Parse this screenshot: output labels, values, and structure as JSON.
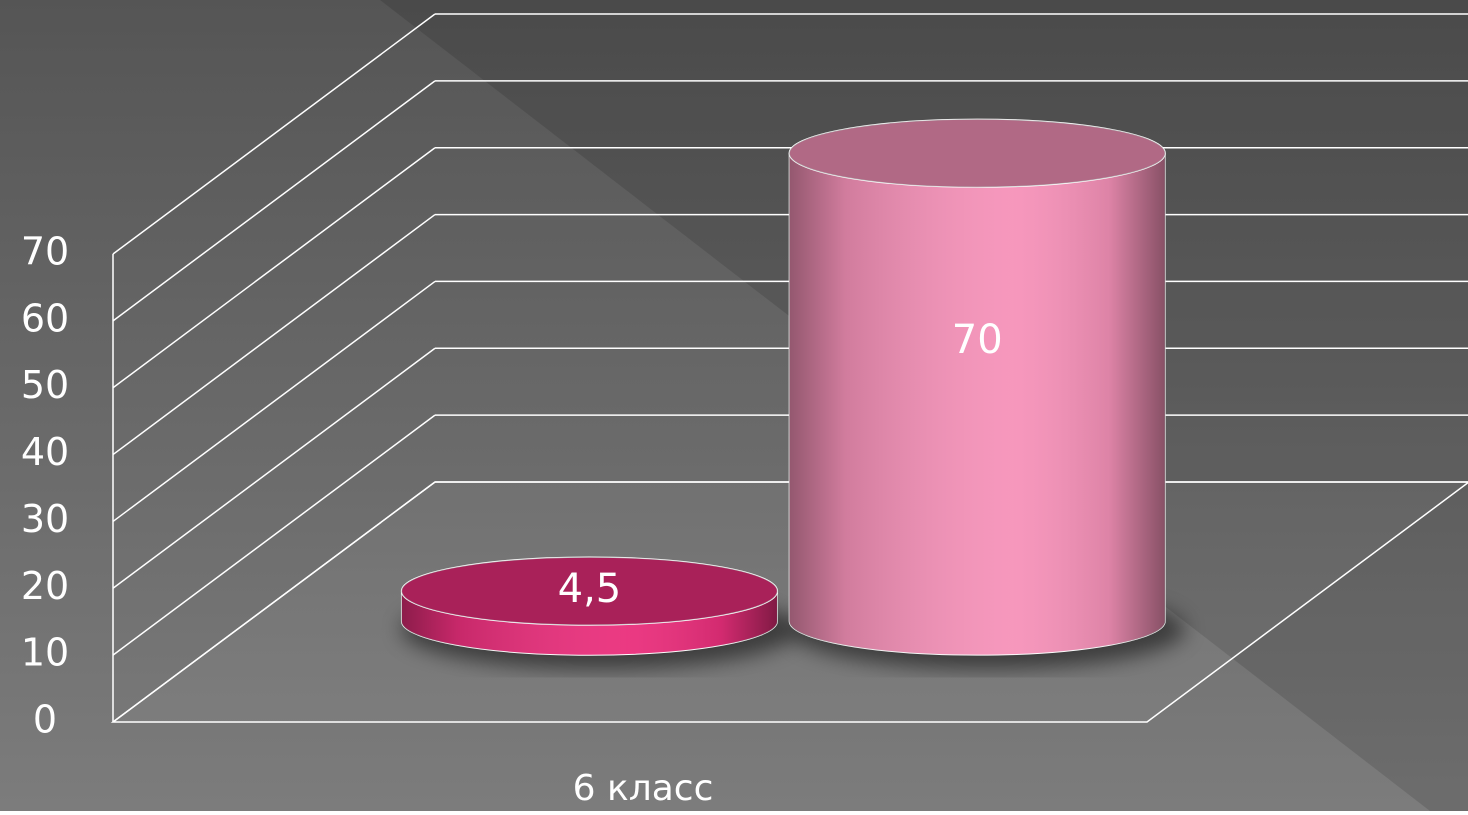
{
  "chart_data": {
    "type": "bar",
    "categories": [
      "6 класс"
    ],
    "series": [
      {
        "color": "#ea2f7c",
        "values": [
          4.5
        ],
        "value_labels": [
          "4,5"
        ]
      },
      {
        "color": "#f692b9",
        "values": [
          70
        ],
        "value_labels": [
          "70"
        ]
      }
    ],
    "ylim": [
      0,
      70
    ],
    "yticks": [
      0,
      10,
      20,
      30,
      40,
      50,
      60,
      70
    ],
    "grid": true
  }
}
